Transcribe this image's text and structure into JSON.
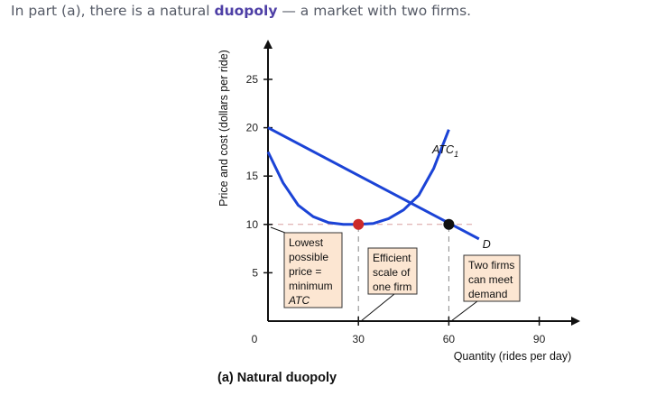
{
  "intro": {
    "before": "In part (a), there is a natural ",
    "keyword": "duopoly",
    "after": " — a market with two firms."
  },
  "caption": "(a) Natural duopoly",
  "chart_data": {
    "type": "line",
    "title": "",
    "xlabel": "Quantity (rides per day)",
    "ylabel": "Price and cost (dollars per ride)",
    "xlim": [
      0,
      90
    ],
    "ylim": [
      0,
      25
    ],
    "x_ticks": [
      0,
      30,
      60,
      90
    ],
    "y_ticks": [
      5,
      10,
      15,
      20,
      25
    ],
    "highlight_x_tick": 30,
    "highlight_y_tick": 10,
    "series": [
      {
        "name": "D",
        "color": "#1b43d6",
        "x": [
          0,
          70
        ],
        "y": [
          20,
          8.5
        ]
      },
      {
        "name": "ATC",
        "subscript": "1",
        "color": "#1b43d6",
        "x": [
          0,
          5,
          10,
          15,
          20,
          25,
          30,
          35,
          40,
          45,
          50,
          55,
          60
        ],
        "y": [
          17.5,
          14.3,
          12.0,
          10.8,
          10.2,
          10.0,
          10.0,
          10.1,
          10.6,
          11.5,
          13.0,
          15.8,
          19.8
        ]
      }
    ],
    "points": [
      {
        "x": 30,
        "y": 10,
        "color": "#cc2a2a"
      },
      {
        "x": 60,
        "y": 10,
        "color": "#111111"
      }
    ],
    "guides": [
      {
        "x0": 0,
        "y0": 10,
        "x1": 69,
        "y1": 10
      },
      {
        "x0": 30,
        "y0": 0,
        "x1": 30,
        "y1": 10
      },
      {
        "x0": 60,
        "y0": 0,
        "x1": 60,
        "y1": 10
      }
    ],
    "annotations": [
      {
        "lines": [
          "Lowest",
          "possible",
          "price =",
          "minimum",
          "ATC"
        ],
        "italic_last": true
      },
      {
        "lines": [
          "Efficient",
          "scale of",
          "one firm"
        ],
        "italic_last": false
      },
      {
        "lines": [
          "Two firms",
          "can meet",
          "demand"
        ],
        "italic_last": false
      }
    ]
  }
}
